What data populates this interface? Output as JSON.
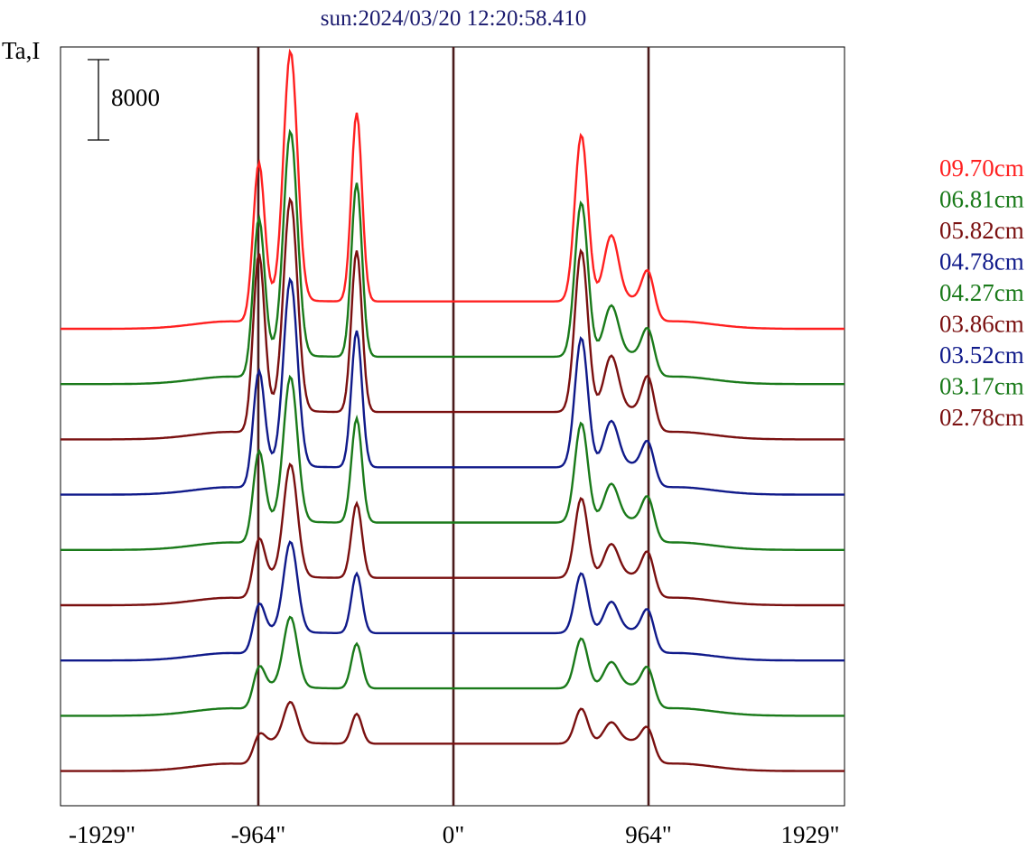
{
  "chart_data": {
    "type": "line",
    "title": "sun:2024/03/20 12:20:58.410",
    "title_color": "#1a1a6e",
    "ylabel": "Ta,I",
    "scale_bar_label": "8000",
    "scale_bar_value": 8000,
    "xlim": [
      -2100,
      1929
    ],
    "x_ticks": [
      {
        "value": -1929,
        "label": "-1929\""
      },
      {
        "value": -964,
        "label": "-964\""
      },
      {
        "value": 0,
        "label": "0\""
      },
      {
        "value": 964,
        "label": "964\""
      },
      {
        "value": 1929,
        "label": "1929\""
      }
    ],
    "vertical_lines": [
      -964,
      0,
      964
    ],
    "vertical_line_color": "#4a1a1a",
    "legend_position": "right",
    "series": [
      {
        "name": "09.70cm",
        "color": "#ff2020",
        "offset": 0,
        "peaks": [
          1.0,
          0.62,
          0.76,
          0.67,
          0.26,
          0.16
        ]
      },
      {
        "name": "06.81cm",
        "color": "#1a7a1a",
        "offset": 1,
        "peaks": [
          0.9,
          0.62,
          0.7,
          0.62,
          0.2,
          0.15
        ]
      },
      {
        "name": "05.82cm",
        "color": "#7a1010",
        "offset": 2,
        "peaks": [
          0.85,
          0.7,
          0.65,
          0.65,
          0.22,
          0.18
        ]
      },
      {
        "name": "04.78cm",
        "color": "#101a8a",
        "offset": 3,
        "peaks": [
          0.75,
          0.45,
          0.55,
          0.52,
          0.18,
          0.14
        ]
      },
      {
        "name": "04.27cm",
        "color": "#1a7a1a",
        "offset": 4,
        "peaks": [
          0.58,
          0.35,
          0.42,
          0.4,
          0.15,
          0.14
        ]
      },
      {
        "name": "03.86cm",
        "color": "#7a1010",
        "offset": 5,
        "peaks": [
          0.45,
          0.22,
          0.3,
          0.32,
          0.13,
          0.14
        ]
      },
      {
        "name": "03.52cm",
        "color": "#101a8a",
        "offset": 6,
        "peaks": [
          0.36,
          0.18,
          0.24,
          0.24,
          0.12,
          0.13
        ]
      },
      {
        "name": "03.17cm",
        "color": "#1a7a1a",
        "offset": 7,
        "peaks": [
          0.28,
          0.15,
          0.18,
          0.2,
          0.1,
          0.12
        ]
      },
      {
        "name": "02.78cm",
        "color": "#7a1010",
        "offset": 8,
        "peaks": [
          0.16,
          0.1,
          0.12,
          0.14,
          0.08,
          0.1
        ]
      }
    ]
  }
}
